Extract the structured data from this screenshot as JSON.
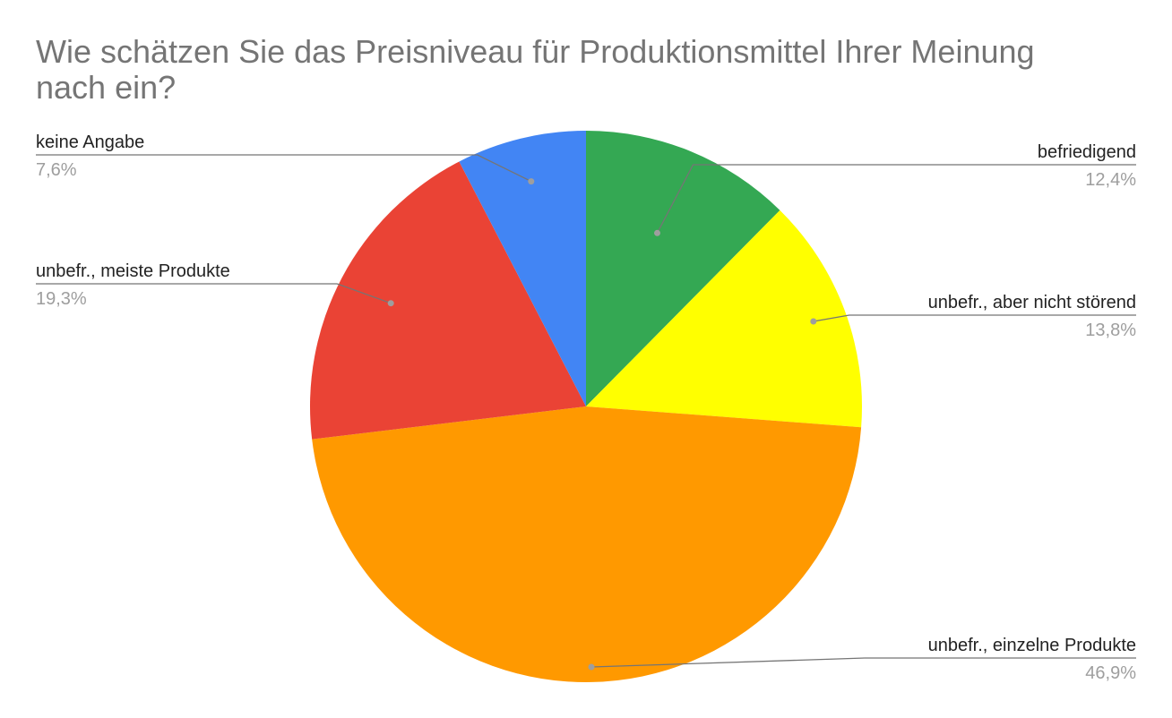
{
  "chart_data": {
    "type": "pie",
    "title": "Wie schätzen Sie das Preisniveau für Produktionsmittel Ihrer Meinung nach ein?",
    "slices": [
      {
        "label": "befriedigend",
        "value": 12.4,
        "value_label": "12,4%",
        "color": "#34a853"
      },
      {
        "label": "unbefr., aber nicht störend",
        "value": 13.8,
        "value_label": "13,8%",
        "color": "#ffff00"
      },
      {
        "label": "unbefr., einzelne Produkte",
        "value": 46.9,
        "value_label": "46,9%",
        "color": "#ff9900"
      },
      {
        "label": "unbefr., meiste Produkte",
        "value": 19.3,
        "value_label": "19,3%",
        "color": "#ea4335"
      },
      {
        "label": "keine Angabe",
        "value": 7.6,
        "value_label": "7,6%",
        "color": "#4285f4"
      }
    ],
    "start_angle": "12 o'clock",
    "direction": "clockwise",
    "legend": "none",
    "label_style": "leader-lines",
    "leader_color": "#757575"
  }
}
